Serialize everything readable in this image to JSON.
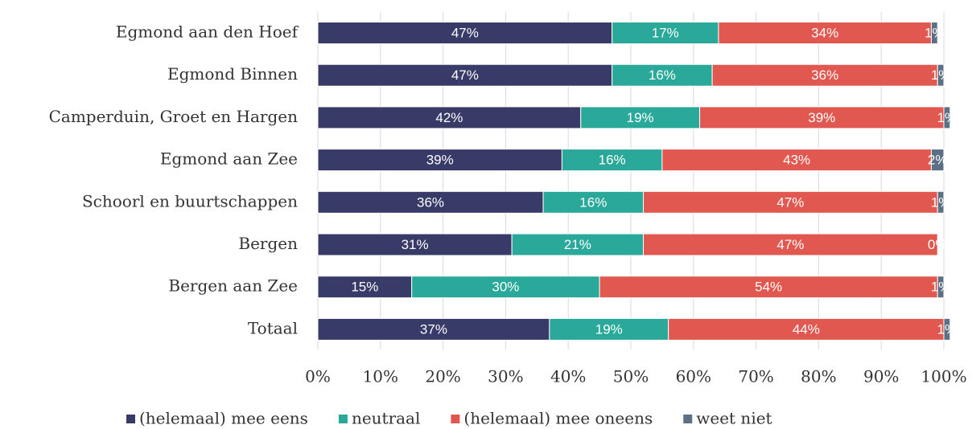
{
  "chart_data": {
    "type": "stacked-bar-horizontal",
    "categories": [
      "Egmond aan den Hoef",
      "Egmond Binnen",
      "Camperduin, Groet en Hargen",
      "Egmond aan Zee",
      "Schoorl en buurtschappen",
      "Bergen",
      "Bergen aan Zee",
      "Totaal"
    ],
    "series": [
      {
        "name": "(helemaal) mee eens",
        "color": "#383a68",
        "values": [
          47,
          47,
          42,
          39,
          36,
          31,
          15,
          37
        ],
        "value_labels": [
          "47%",
          "47%",
          "42%",
          "39%",
          "36%",
          "31%",
          "15%",
          "37%"
        ]
      },
      {
        "name": "neutraal",
        "color": "#2aa89a",
        "values": [
          17,
          16,
          19,
          16,
          16,
          21,
          30,
          19
        ],
        "value_labels": [
          "17%",
          "16%",
          "19%",
          "16%",
          "16%",
          "21%",
          "30%",
          "19%"
        ]
      },
      {
        "name": "(helemaal) mee oneens",
        "color": "#e0584f",
        "values": [
          34,
          36,
          39,
          43,
          47,
          47,
          54,
          44
        ],
        "value_labels": [
          "34%",
          "36%",
          "39%",
          "43%",
          "47%",
          "47%",
          "54%",
          "44%"
        ]
      },
      {
        "name": "weet niet",
        "color": "#5b7085",
        "values": [
          1,
          1,
          1,
          2,
          1,
          0,
          1,
          1
        ],
        "value_labels": [
          "1%",
          "1%",
          "1%",
          "2%",
          "1%",
          "0%",
          "1%",
          "1%"
        ]
      }
    ],
    "xlim": [
      0,
      100
    ],
    "xticks": [
      {
        "value": 0,
        "label": "0%"
      },
      {
        "value": 10,
        "label": "10%"
      },
      {
        "value": 20,
        "label": "20%"
      },
      {
        "value": 30,
        "label": "30%"
      },
      {
        "value": 40,
        "label": "40%"
      },
      {
        "value": 50,
        "label": "50%"
      },
      {
        "value": 60,
        "label": "60%"
      },
      {
        "value": 70,
        "label": "70%"
      },
      {
        "value": 80,
        "label": "80%"
      },
      {
        "value": 90,
        "label": "90%"
      },
      {
        "value": 100,
        "label": "100%"
      }
    ],
    "grid": true,
    "legend": "bottom"
  }
}
